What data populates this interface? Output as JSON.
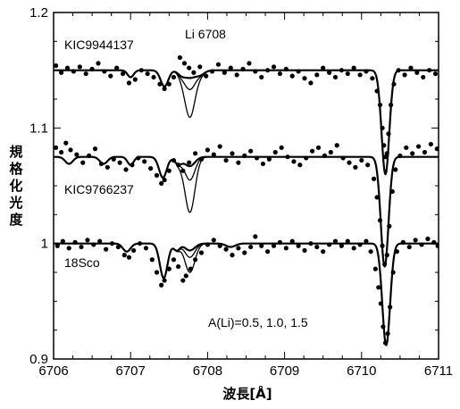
{
  "chart_data": {
    "type": "line",
    "title": "",
    "xlabel": "波長[Å]",
    "ylabel": "規格化光度",
    "xlim": [
      6706,
      6711
    ],
    "ylim": [
      0.9,
      1.2
    ],
    "x_ticks": [
      "6706",
      "6707",
      "6708",
      "6709",
      "6710",
      "6711"
    ],
    "y_ticks": [
      "0.9",
      "1",
      "1.1",
      "1.2"
    ],
    "grid": false,
    "annotations": {
      "li_line": "Li 6708",
      "abundances": "A(Li)=0.5, 1.0, 1.5"
    },
    "model_abundances": [
      0.5,
      1.0,
      1.5
    ],
    "stars": [
      {
        "name": "KIC9944137",
        "continuum": 1.15,
        "features": [
          {
            "x": 6707.0,
            "depth": 0.006,
            "width": 0.04
          },
          {
            "x": 6707.44,
            "depth": 0.014,
            "width": 0.05
          },
          {
            "x": 6707.66,
            "depth": 0.004,
            "width": 0.05
          },
          {
            "x": 6707.9,
            "depth": 0.004,
            "width": 0.06
          },
          {
            "x": 6710.31,
            "depth": 0.09,
            "width": 0.05
          }
        ],
        "li_depths": [
          0.006,
          0.016,
          0.04
        ],
        "observed": [
          [
            6706.03,
            1.154
          ],
          [
            6706.1,
            1.148
          ],
          [
            6706.18,
            1.152
          ],
          [
            6706.26,
            1.149
          ],
          [
            6706.34,
            1.153
          ],
          [
            6706.42,
            1.147
          ],
          [
            6706.5,
            1.151
          ],
          [
            6706.58,
            1.156
          ],
          [
            6706.66,
            1.149
          ],
          [
            6706.74,
            1.145
          ],
          [
            6706.82,
            1.152
          ],
          [
            6706.9,
            1.147
          ],
          [
            6706.98,
            1.139
          ],
          [
            6707.06,
            1.142
          ],
          [
            6707.14,
            1.15
          ],
          [
            6707.22,
            1.147
          ],
          [
            6707.3,
            1.144
          ],
          [
            6707.38,
            1.138
          ],
          [
            6707.44,
            1.134
          ],
          [
            6707.5,
            1.138
          ],
          [
            6707.56,
            1.144
          ],
          [
            6707.64,
            1.161
          ],
          [
            6707.7,
            1.156
          ],
          [
            6707.76,
            1.152
          ],
          [
            6707.82,
            1.148
          ],
          [
            6707.9,
            1.153
          ],
          [
            6707.98,
            1.145
          ],
          [
            6708.06,
            1.149
          ],
          [
            6708.14,
            1.155
          ],
          [
            6708.22,
            1.148
          ],
          [
            6708.3,
            1.152
          ],
          [
            6708.38,
            1.146
          ],
          [
            6708.46,
            1.151
          ],
          [
            6708.54,
            1.156
          ],
          [
            6708.62,
            1.149
          ],
          [
            6708.7,
            1.144
          ],
          [
            6708.78,
            1.15
          ],
          [
            6708.86,
            1.153
          ],
          [
            6708.94,
            1.147
          ],
          [
            6709.02,
            1.151
          ],
          [
            6709.1,
            1.145
          ],
          [
            6709.18,
            1.149
          ],
          [
            6709.26,
            1.143
          ],
          [
            6709.34,
            1.139
          ],
          [
            6709.42,
            1.146
          ],
          [
            6709.5,
            1.152
          ],
          [
            6709.58,
            1.148
          ],
          [
            6709.66,
            1.144
          ],
          [
            6709.74,
            1.15
          ],
          [
            6709.82,
            1.147
          ],
          [
            6709.9,
            1.152
          ],
          [
            6709.98,
            1.146
          ],
          [
            6710.06,
            1.149
          ],
          [
            6710.14,
            1.143
          ],
          [
            6710.2,
            1.132
          ],
          [
            6710.24,
            1.12
          ],
          [
            6710.27,
            1.1
          ],
          [
            6710.29,
            1.085
          ],
          [
            6710.31,
            1.075
          ],
          [
            6710.33,
            1.078
          ],
          [
            6710.35,
            1.095
          ],
          [
            6710.38,
            1.12
          ],
          [
            6710.42,
            1.138
          ],
          [
            6710.48,
            1.15
          ],
          [
            6710.56,
            1.146
          ],
          [
            6710.64,
            1.152
          ],
          [
            6710.72,
            1.148
          ],
          [
            6710.8,
            1.144
          ],
          [
            6710.88,
            1.15
          ],
          [
            6710.96,
            1.147
          ]
        ]
      },
      {
        "name": "KIC9766237",
        "continuum": 1.075,
        "features": [
          {
            "x": 6706.2,
            "depth": 0.006,
            "width": 0.05
          },
          {
            "x": 6706.65,
            "depth": 0.006,
            "width": 0.05
          },
          {
            "x": 6707.0,
            "depth": 0.007,
            "width": 0.04
          },
          {
            "x": 6707.42,
            "depth": 0.018,
            "width": 0.05
          },
          {
            "x": 6707.62,
            "depth": 0.006,
            "width": 0.05
          },
          {
            "x": 6710.3,
            "depth": 0.095,
            "width": 0.05
          }
        ],
        "li_depths": [
          0.008,
          0.02,
          0.048
        ],
        "observed": [
          [
            6706.03,
            1.083
          ],
          [
            6706.1,
            1.079
          ],
          [
            6706.16,
            1.087
          ],
          [
            6706.22,
            1.081
          ],
          [
            6706.3,
            1.077
          ],
          [
            6706.38,
            1.07
          ],
          [
            6706.46,
            1.076
          ],
          [
            6706.54,
            1.082
          ],
          [
            6706.62,
            1.069
          ],
          [
            6706.7,
            1.066
          ],
          [
            6706.78,
            1.073
          ],
          [
            6706.86,
            1.07
          ],
          [
            6706.94,
            1.064
          ],
          [
            6707.02,
            1.068
          ],
          [
            6707.1,
            1.074
          ],
          [
            6707.18,
            1.071
          ],
          [
            6707.26,
            1.065
          ],
          [
            6707.34,
            1.059
          ],
          [
            6707.4,
            1.052
          ],
          [
            6707.44,
            1.055
          ],
          [
            6707.5,
            1.063
          ],
          [
            6707.56,
            1.072
          ],
          [
            6707.62,
            1.068
          ],
          [
            6707.68,
            1.063
          ],
          [
            6707.76,
            1.07
          ],
          [
            6707.84,
            1.078
          ],
          [
            6707.92,
            1.073
          ],
          [
            6708.0,
            1.081
          ],
          [
            6708.08,
            1.077
          ],
          [
            6708.16,
            1.084
          ],
          [
            6708.24,
            1.072
          ],
          [
            6708.32,
            1.078
          ],
          [
            6708.4,
            1.07
          ],
          [
            6708.48,
            1.076
          ],
          [
            6708.56,
            1.08
          ],
          [
            6708.64,
            1.074
          ],
          [
            6708.72,
            1.069
          ],
          [
            6708.8,
            1.073
          ],
          [
            6708.88,
            1.079
          ],
          [
            6708.96,
            1.083
          ],
          [
            6709.04,
            1.075
          ],
          [
            6709.12,
            1.071
          ],
          [
            6709.2,
            1.068
          ],
          [
            6709.28,
            1.074
          ],
          [
            6709.36,
            1.08
          ],
          [
            6709.44,
            1.083
          ],
          [
            6709.52,
            1.076
          ],
          [
            6709.6,
            1.079
          ],
          [
            6709.68,
            1.085
          ],
          [
            6709.76,
            1.074
          ],
          [
            6709.84,
            1.07
          ],
          [
            6709.92,
            1.066
          ],
          [
            6710.0,
            1.072
          ],
          [
            6710.08,
            1.068
          ],
          [
            6710.16,
            1.056
          ],
          [
            6710.2,
            1.04
          ],
          [
            6710.24,
            1.02
          ],
          [
            6710.27,
            0.998
          ],
          [
            6710.3,
            0.982
          ],
          [
            6710.33,
            0.99
          ],
          [
            6710.36,
            1.015
          ],
          [
            6710.4,
            1.045
          ],
          [
            6710.44,
            1.064
          ],
          [
            6710.5,
            1.076
          ],
          [
            6710.58,
            1.083
          ],
          [
            6710.66,
            1.078
          ],
          [
            6710.74,
            1.084
          ],
          [
            6710.82,
            1.079
          ],
          [
            6710.9,
            1.086
          ],
          [
            6710.98,
            1.082
          ]
        ]
      },
      {
        "name": "18Sco",
        "continuum": 1.0,
        "features": [
          {
            "x": 6706.95,
            "depth": 0.007,
            "width": 0.05
          },
          {
            "x": 6707.43,
            "depth": 0.03,
            "width": 0.05
          },
          {
            "x": 6707.6,
            "depth": 0.006,
            "width": 0.04
          },
          {
            "x": 6708.3,
            "depth": 0.003,
            "width": 0.06
          },
          {
            "x": 6710.32,
            "depth": 0.088,
            "width": 0.05
          }
        ],
        "li_depths": [
          0.006,
          0.012,
          0.025
        ],
        "observed": [
          [
            6706.05,
            0.998
          ],
          [
            6706.12,
            1.002
          ],
          [
            6706.2,
            0.996
          ],
          [
            6706.28,
            1.001
          ],
          [
            6706.36,
            0.997
          ],
          [
            6706.44,
            1.003
          ],
          [
            6706.52,
            0.999
          ],
          [
            6706.6,
            1.002
          ],
          [
            6706.68,
            0.995
          ],
          [
            6706.76,
            1.0
          ],
          [
            6706.84,
            0.997
          ],
          [
            6706.92,
            0.99
          ],
          [
            6706.98,
            0.988
          ],
          [
            6707.04,
            0.994
          ],
          [
            6707.12,
            1.0
          ],
          [
            6707.2,
            0.996
          ],
          [
            6707.28,
            0.986
          ],
          [
            6707.34,
            0.975
          ],
          [
            6707.4,
            0.964
          ],
          [
            6707.44,
            0.968
          ],
          [
            6707.5,
            0.978
          ],
          [
            6707.56,
            0.986
          ],
          [
            6707.62,
            0.98
          ],
          [
            6707.68,
            0.968
          ],
          [
            6707.72,
            0.972
          ],
          [
            6707.78,
            0.978
          ],
          [
            6707.84,
            0.986
          ],
          [
            6707.92,
            0.992
          ],
          [
            6708.0,
            0.999
          ],
          [
            6708.08,
            1.003
          ],
          [
            6708.16,
            0.998
          ],
          [
            6708.24,
            0.995
          ],
          [
            6708.32,
            0.99
          ],
          [
            6708.4,
            0.996
          ],
          [
            6708.48,
            0.992
          ],
          [
            6708.56,
            0.997
          ],
          [
            6708.62,
            1.006
          ],
          [
            6708.7,
            0.998
          ],
          [
            6708.78,
            0.993
          ],
          [
            6708.86,
            0.998
          ],
          [
            6708.94,
            1.001
          ],
          [
            6709.02,
            0.996
          ],
          [
            6709.1,
            1.002
          ],
          [
            6709.18,
            0.998
          ],
          [
            6709.26,
            0.994
          ],
          [
            6709.34,
            1.0
          ],
          [
            6709.42,
            0.997
          ],
          [
            6709.5,
            0.993
          ],
          [
            6709.58,
            0.999
          ],
          [
            6709.66,
            1.002
          ],
          [
            6709.74,
            0.998
          ],
          [
            6709.82,
            1.002
          ],
          [
            6709.9,
            0.996
          ],
          [
            6709.98,
            0.999
          ],
          [
            6710.06,
            1.002
          ],
          [
            6710.12,
            0.993
          ],
          [
            6710.18,
            0.978
          ],
          [
            6710.22,
            0.962
          ],
          [
            6710.25,
            0.948
          ],
          [
            6710.28,
            0.928
          ],
          [
            6710.31,
            0.914
          ],
          [
            6710.34,
            0.922
          ],
          [
            6710.37,
            0.945
          ],
          [
            6710.41,
            0.975
          ],
          [
            6710.46,
            0.993
          ],
          [
            6710.54,
            1.001
          ],
          [
            6710.62,
            0.997
          ],
          [
            6710.7,
            1.003
          ],
          [
            6710.78,
            0.999
          ],
          [
            6710.86,
            1.004
          ],
          [
            6710.94,
            1.001
          ],
          [
            6710.99,
            0.998
          ]
        ]
      }
    ]
  }
}
